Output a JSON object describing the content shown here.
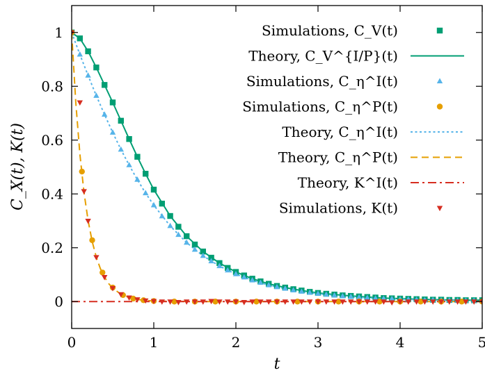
{
  "chart_data": {
    "type": "line",
    "title": "",
    "xlabel": "t",
    "ylabel": "C_X(t), K(t)",
    "xlim": [
      0,
      5
    ],
    "ylim": [
      -0.1,
      1.1
    ],
    "grid": false,
    "legend_position": "top-right",
    "xticks": [
      "0",
      "1",
      "2",
      "3",
      "4",
      "5"
    ],
    "yticks": [
      "0",
      "0.2",
      "0.4",
      "0.6",
      "0.8",
      "1"
    ],
    "series": [
      {
        "name": "Simulations, C_V(t)",
        "style": "markers-square",
        "color": "#009e73",
        "x": [
          0,
          0.1,
          0.2,
          0.3,
          0.4,
          0.5,
          0.6,
          0.7,
          0.8,
          0.9,
          1.0,
          1.1,
          1.2,
          1.3,
          1.4,
          1.5,
          1.6,
          1.7,
          1.8,
          1.9,
          2.0,
          2.1,
          2.2,
          2.3,
          2.4,
          2.5,
          2.6,
          2.7,
          2.8,
          2.9,
          3.0,
          3.1,
          3.2,
          3.3,
          3.4,
          3.5,
          3.6,
          3.7,
          3.8,
          3.9,
          4.0,
          4.1,
          4.2,
          4.3,
          4.4,
          4.5,
          4.6,
          4.7,
          4.8,
          4.9,
          5.0
        ],
        "y": [
          1.0,
          0.978,
          0.93,
          0.87,
          0.805,
          0.74,
          0.672,
          0.604,
          0.538,
          0.475,
          0.416,
          0.364,
          0.318,
          0.278,
          0.243,
          0.212,
          0.186,
          0.163,
          0.143,
          0.125,
          0.11,
          0.097,
          0.085,
          0.075,
          0.066,
          0.058,
          0.052,
          0.046,
          0.041,
          0.036,
          0.032,
          0.029,
          0.026,
          0.023,
          0.021,
          0.019,
          0.017,
          0.015,
          0.013,
          0.012,
          0.011,
          0.01,
          0.009,
          0.008,
          0.007,
          0.007,
          0.006,
          0.006,
          0.005,
          0.005,
          0.005
        ]
      },
      {
        "name": "Theory, C_V^{I/P}(t)",
        "style": "line-solid",
        "color": "#009e73",
        "x": [
          0,
          0.1,
          0.2,
          0.3,
          0.4,
          0.5,
          0.6,
          0.7,
          0.8,
          0.9,
          1.0,
          1.2,
          1.4,
          1.6,
          1.8,
          2.0,
          2.2,
          2.4,
          2.6,
          2.8,
          3.0,
          3.2,
          3.4,
          3.6,
          3.8,
          4.0,
          4.2,
          4.4,
          4.6,
          4.8,
          5.0
        ],
        "y": [
          1.0,
          0.978,
          0.93,
          0.87,
          0.805,
          0.74,
          0.672,
          0.604,
          0.538,
          0.475,
          0.416,
          0.318,
          0.243,
          0.186,
          0.143,
          0.11,
          0.085,
          0.066,
          0.052,
          0.041,
          0.032,
          0.026,
          0.021,
          0.017,
          0.013,
          0.011,
          0.009,
          0.007,
          0.006,
          0.005,
          0.005
        ]
      },
      {
        "name": "Simulations, C_η^I(t)",
        "style": "markers-triangle-up",
        "color": "#56b4e9",
        "x": [
          0,
          0.1,
          0.2,
          0.3,
          0.4,
          0.5,
          0.6,
          0.7,
          0.8,
          0.9,
          1.0,
          1.1,
          1.2,
          1.3,
          1.4,
          1.5,
          1.6,
          1.7,
          1.8,
          1.9,
          2.0,
          2.1,
          2.2,
          2.3,
          2.4,
          2.5,
          2.6,
          2.7,
          2.8,
          2.9,
          3.0,
          3.1,
          3.2,
          3.3,
          3.4,
          3.5,
          3.6,
          3.7,
          3.8,
          3.9,
          4.0,
          4.1,
          4.2,
          4.3,
          4.4,
          4.5,
          4.6,
          4.7,
          4.8,
          4.9,
          5.0
        ],
        "y": [
          1.0,
          0.918,
          0.84,
          0.765,
          0.695,
          0.628,
          0.565,
          0.507,
          0.453,
          0.403,
          0.358,
          0.317,
          0.281,
          0.248,
          0.219,
          0.193,
          0.17,
          0.15,
          0.132,
          0.116,
          0.102,
          0.09,
          0.079,
          0.07,
          0.061,
          0.054,
          0.048,
          0.042,
          0.037,
          0.033,
          0.029,
          0.026,
          0.023,
          0.02,
          0.018,
          0.016,
          0.014,
          0.012,
          0.011,
          0.01,
          0.009,
          0.008,
          0.007,
          0.006,
          0.006,
          0.005,
          0.005,
          0.004,
          0.004,
          0.004,
          0.003
        ]
      },
      {
        "name": "Simulations, C_η^P(t)",
        "style": "markers-circle",
        "color": "#e69f00",
        "x": [
          0,
          0.125,
          0.25,
          0.375,
          0.5,
          0.625,
          0.75,
          0.875,
          1.0,
          1.25,
          1.5,
          1.75,
          2.0,
          2.25,
          2.5,
          2.75,
          3.0,
          3.25,
          3.5,
          3.75,
          4.0,
          4.25,
          4.5,
          4.75,
          5.0
        ],
        "y": [
          1.0,
          0.483,
          0.228,
          0.108,
          0.052,
          0.024,
          0.011,
          0.005,
          0.002,
          0.0,
          0.0,
          0.0,
          0.0,
          0.0,
          0.0,
          0.0,
          0.0,
          0.0,
          0.0,
          0.0,
          0.0,
          0.0,
          0.0,
          0.0,
          0.0
        ]
      },
      {
        "name": "Theory, C_η^I(t)",
        "style": "line-dotted",
        "color": "#56b4e9",
        "x": [
          0,
          0.1,
          0.2,
          0.3,
          0.4,
          0.5,
          0.6,
          0.7,
          0.8,
          0.9,
          1.0,
          1.2,
          1.4,
          1.6,
          1.8,
          2.0,
          2.2,
          2.4,
          2.6,
          2.8,
          3.0,
          3.2,
          3.4,
          3.6,
          3.8,
          4.0,
          4.2,
          4.4,
          4.6,
          4.8,
          5.0
        ],
        "y": [
          1.0,
          0.918,
          0.84,
          0.765,
          0.695,
          0.628,
          0.565,
          0.507,
          0.453,
          0.403,
          0.358,
          0.281,
          0.219,
          0.17,
          0.132,
          0.102,
          0.079,
          0.061,
          0.048,
          0.037,
          0.029,
          0.023,
          0.018,
          0.014,
          0.011,
          0.009,
          0.007,
          0.006,
          0.005,
          0.004,
          0.003
        ]
      },
      {
        "name": "Theory, C_η^P(t)",
        "style": "line-dashed",
        "color": "#e69f00",
        "x": [
          0,
          0.05,
          0.1,
          0.15,
          0.2,
          0.25,
          0.3,
          0.35,
          0.4,
          0.45,
          0.5,
          0.6,
          0.7,
          0.8,
          0.9,
          1.0,
          1.5,
          2.0,
          3.0,
          4.0,
          5.0
        ],
        "y": [
          1.0,
          0.74,
          0.548,
          0.406,
          0.301,
          0.223,
          0.165,
          0.122,
          0.091,
          0.067,
          0.05,
          0.027,
          0.015,
          0.008,
          0.004,
          0.002,
          0.0,
          0.0,
          0.0,
          0.0,
          0.0
        ]
      },
      {
        "name": "Theory, K^I(t)",
        "style": "line-dashdot",
        "color": "#d62d20",
        "x": [
          0,
          5
        ],
        "y": [
          0,
          0
        ]
      },
      {
        "name": "Simulations, K(t)",
        "style": "markers-triangle-down",
        "color": "#d62d20",
        "x": [
          0,
          0.1,
          0.15,
          0.2,
          0.3,
          0.4,
          0.5,
          0.6,
          0.7,
          0.8,
          0.9,
          1.0,
          1.1,
          1.2,
          1.3,
          1.4,
          1.5,
          1.6,
          1.7,
          1.8,
          1.9,
          2.0,
          2.1,
          2.2,
          2.3,
          2.4,
          2.5,
          2.6,
          2.7,
          2.8,
          2.9,
          3.0,
          3.1,
          3.2,
          3.3,
          3.4,
          3.5,
          3.6,
          3.7,
          3.8,
          3.9,
          4.0,
          4.1,
          4.2,
          4.3,
          4.4,
          4.5,
          4.6,
          4.7,
          4.8,
          4.9,
          5.0
        ],
        "y": [
          1.0,
          0.74,
          0.41,
          0.3,
          0.165,
          0.091,
          0.05,
          0.027,
          0.015,
          0.008,
          0.004,
          0.002,
          0.0,
          0.0,
          -0.002,
          0.0,
          0.0,
          0.0,
          0.002,
          0.0,
          0.0,
          0.0,
          -0.002,
          0.0,
          0.0,
          0.0,
          0.0,
          0.0,
          0.0,
          0.0,
          0.0,
          0.0,
          0.0,
          0.0,
          0.0,
          0.0,
          0.0,
          0.0,
          0.0,
          0.0,
          -0.003,
          0.0,
          0.0,
          0.0,
          0.0,
          0.0,
          0.0,
          0.0,
          0.0,
          0.0,
          0.0,
          0.0
        ]
      }
    ]
  }
}
